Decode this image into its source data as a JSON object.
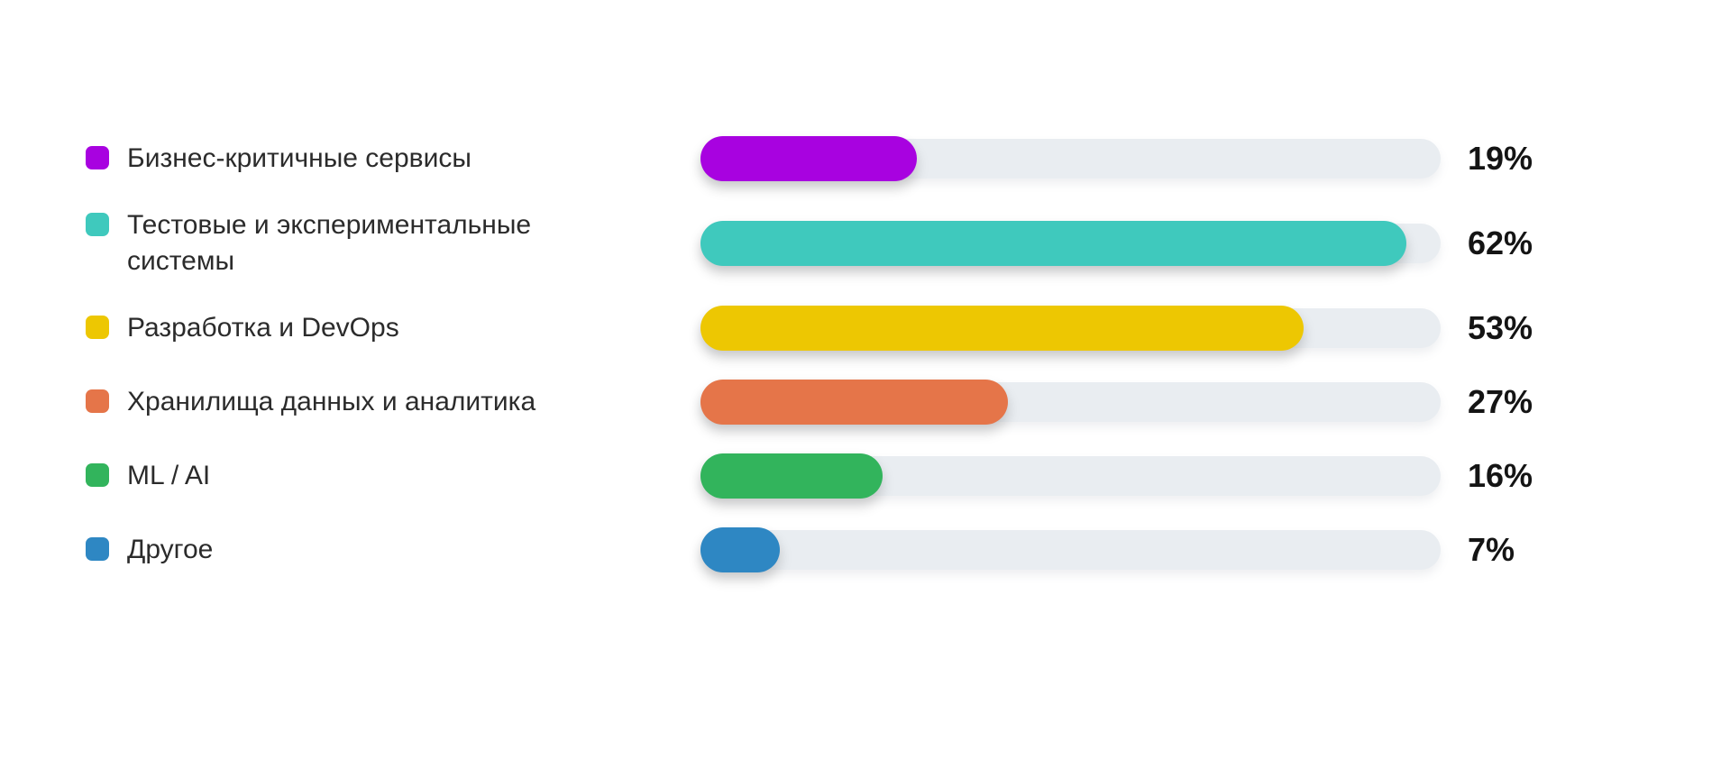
{
  "chart_data": {
    "type": "bar",
    "orientation": "horizontal",
    "title": "",
    "xlabel": "",
    "ylabel": "",
    "grid": false,
    "legend_position": "left",
    "xlim": [
      0,
      65
    ],
    "categories": [
      "Бизнес-критичные сервисы",
      "Тестовые и экспериментальные системы",
      "Разработка и DevOps",
      "Хранилища данных и аналитика",
      "ML / AI",
      "Другое"
    ],
    "values": [
      19,
      62,
      53,
      27,
      16,
      7
    ],
    "value_labels": [
      "19%",
      "62%",
      "53%",
      "27%",
      "16%",
      "7%"
    ],
    "colors": [
      "#a802e0",
      "#3fc9bd",
      "#edc702",
      "#e57549",
      "#32b45c",
      "#2e87c3"
    ],
    "track_color": "#e9edf1"
  }
}
